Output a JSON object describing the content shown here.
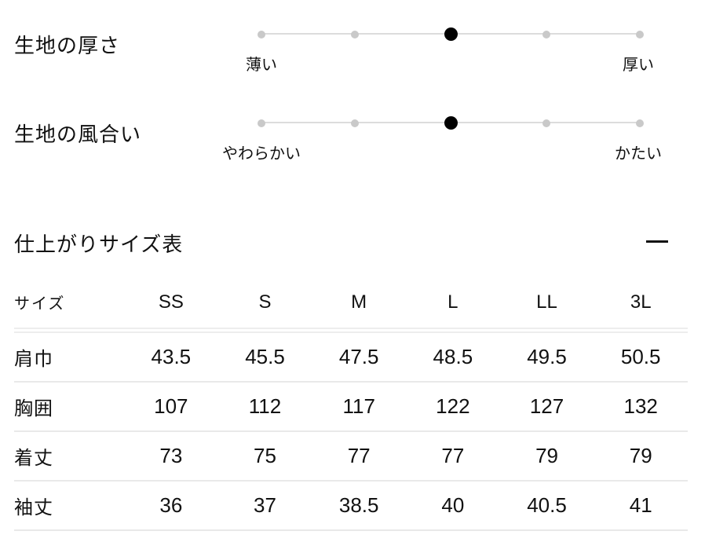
{
  "fabric_meters": {
    "items": [
      {
        "label": "生地の厚さ",
        "min_label": "薄い",
        "max_label": "厚い",
        "levels": 5,
        "value": 3
      },
      {
        "label": "生地の風合い",
        "min_label": "やわらかい",
        "max_label": "かたい",
        "levels": 5,
        "value": 3
      }
    ]
  },
  "size_section": {
    "title": "仕上がりサイズ表",
    "toggle_icon": "minus-icon"
  },
  "size_table": {
    "header": [
      "サイズ",
      "SS",
      "S",
      "M",
      "L",
      "LL",
      "3L"
    ],
    "rows": [
      {
        "label": "肩巾",
        "values": [
          "43.5",
          "45.5",
          "47.5",
          "48.5",
          "49.5",
          "50.5"
        ]
      },
      {
        "label": "胸囲",
        "values": [
          "107",
          "112",
          "117",
          "122",
          "127",
          "132"
        ]
      },
      {
        "label": "着丈",
        "values": [
          "73",
          "75",
          "77",
          "77",
          "79",
          "79"
        ]
      },
      {
        "label": "袖丈",
        "values": [
          "36",
          "37",
          "38.5",
          "40",
          "40.5",
          "41"
        ]
      }
    ]
  },
  "colors": {
    "text": "#111111",
    "track": "#dcdcdc",
    "dot_inactive": "#c9c9c9",
    "dot_active": "#000000",
    "divider": "#e9e9e9"
  }
}
